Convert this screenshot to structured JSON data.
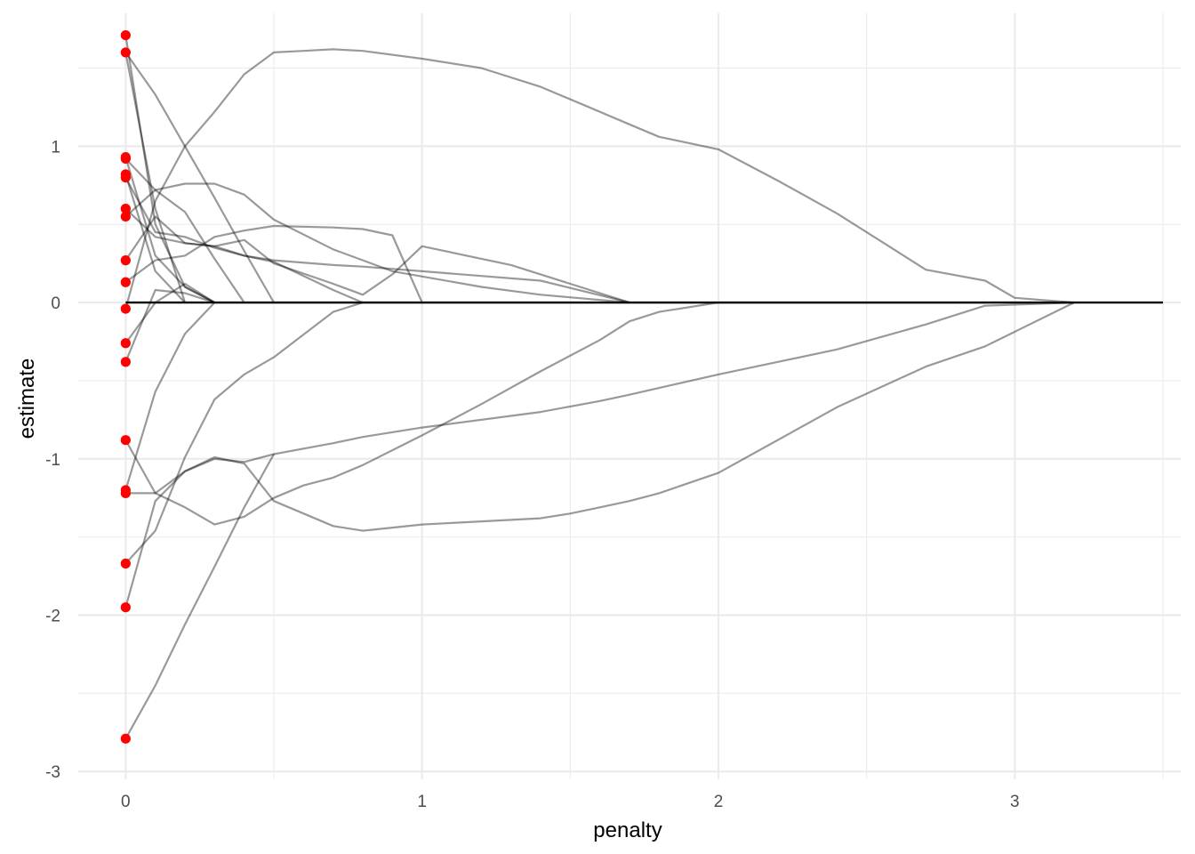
{
  "chart_data": {
    "type": "line",
    "title": "",
    "xlabel": "penalty",
    "ylabel": "estimate",
    "xlim": [
      -0.16,
      3.56
    ],
    "ylim": [
      -3.05,
      1.85
    ],
    "x_ticks": [
      0,
      1,
      2,
      3
    ],
    "y_ticks": [
      -3,
      -2,
      -1,
      0,
      1
    ],
    "grid": true,
    "legend": "none",
    "colors": {
      "path_line": "#999999",
      "zero_line": "#000000",
      "start_point": "#ff0000",
      "grid": "#ebebeb"
    },
    "zero_line": {
      "x": [
        0,
        3.5
      ],
      "y": [
        0,
        0
      ]
    },
    "series": [
      {
        "x": [
          0,
          0.1,
          0.2,
          0.3
        ],
        "y": [
          1.71,
          0.5,
          0.1,
          0
        ]
      },
      {
        "x": [
          0,
          0.1,
          0.2,
          0.3,
          0.4,
          0.5
        ],
        "y": [
          1.6,
          1.33,
          1.0,
          0.67,
          0.33,
          0
        ]
      },
      {
        "x": [
          0,
          0.1,
          0.2
        ],
        "y": [
          1.6,
          0.6,
          0
        ]
      },
      {
        "x": [
          0,
          0.1,
          0.2,
          0.3
        ],
        "y": [
          0.93,
          0.3,
          0.1,
          0
        ]
      },
      {
        "x": [
          0,
          0.1,
          0.2,
          0.3,
          0.4
        ],
        "y": [
          0.92,
          0.72,
          0.58,
          0.28,
          0
        ]
      },
      {
        "x": [
          0,
          0.1,
          0.2
        ],
        "y": [
          0.82,
          0.2,
          0
        ]
      },
      {
        "x": [
          0,
          0.1,
          0.2,
          0.3,
          0.4,
          0.5,
          0.7,
          0.8
        ],
        "y": [
          0.8,
          0.45,
          0.42,
          0.35,
          0.3,
          0.26,
          0.08,
          0
        ]
      },
      {
        "x": [
          0,
          0.1,
          0.2,
          0.3,
          0.4,
          0.5,
          0.7,
          0.8,
          1.0,
          1.4,
          1.7
        ],
        "y": [
          0.6,
          0.42,
          0.38,
          0.36,
          0.3,
          0.27,
          0.24,
          0.23,
          0.2,
          0.14,
          0
        ]
      },
      {
        "x": [
          0,
          0.1,
          0.2,
          0.3,
          0.4,
          0.5,
          0.7,
          0.9,
          1.2,
          1.4,
          1.7
        ],
        "y": [
          0.55,
          0.72,
          0.76,
          0.76,
          0.69,
          0.53,
          0.34,
          0.2,
          0.1,
          0.05,
          0
        ]
      },
      {
        "x": [
          0,
          0.1,
          0.2,
          0.3,
          0.4,
          0.5,
          0.7,
          0.8,
          0.9,
          1.0,
          1.3,
          1.5,
          1.7
        ],
        "y": [
          0.27,
          0.55,
          0.38,
          0.36,
          0.4,
          0.25,
          0.12,
          0.05,
          0.18,
          0.36,
          0.24,
          0.12,
          0
        ]
      },
      {
        "x": [
          0,
          0.1,
          0.2,
          0.3,
          0.4,
          0.5,
          0.7,
          0.8,
          0.9,
          1.0
        ],
        "y": [
          0.13,
          0.27,
          0.3,
          0.42,
          0.46,
          0.49,
          0.48,
          0.47,
          0.43,
          0
        ]
      },
      {
        "x": [
          0,
          0.1,
          0.2,
          0.3,
          0.4,
          0.5,
          0.6,
          0.7,
          0.8,
          1.0,
          1.2,
          1.4,
          1.6,
          1.7,
          1.8,
          2.0,
          2.2,
          2.4,
          2.6,
          2.7,
          2.9,
          3.0,
          3.2
        ],
        "y": [
          -0.04,
          0.65,
          1.0,
          1.22,
          1.46,
          1.6,
          1.61,
          1.62,
          1.61,
          1.56,
          1.5,
          1.38,
          1.22,
          1.14,
          1.06,
          0.98,
          0.78,
          0.57,
          0.33,
          0.21,
          0.14,
          0.03,
          0
        ]
      },
      {
        "x": [
          0,
          0.1,
          0.2,
          0.3
        ],
        "y": [
          -0.26,
          0.0,
          0.12,
          0
        ]
      },
      {
        "x": [
          0,
          0.1,
          0.2,
          0.3
        ],
        "y": [
          -0.38,
          0.08,
          0.06,
          0
        ]
      },
      {
        "x": [
          0,
          0.1,
          0.2,
          0.3,
          0.4,
          0.5,
          0.6,
          0.7,
          0.8,
          1.0,
          1.2,
          1.4,
          1.6,
          1.7,
          1.8,
          2.0,
          2.4,
          2.9
        ],
        "y": [
          -0.88,
          -1.22,
          -1.31,
          -1.42,
          -1.37,
          -1.25,
          -1.17,
          -1.12,
          -1.04,
          -0.85,
          -0.65,
          -0.44,
          -0.24,
          -0.12,
          -0.06,
          0,
          0,
          0
        ]
      },
      {
        "x": [
          0,
          0.1,
          0.2,
          0.3,
          0.4,
          0.5,
          0.7,
          0.8,
          1.0,
          1.4,
          1.6,
          1.7,
          2.0,
          2.4,
          2.7,
          2.9,
          3.2
        ],
        "y": [
          -1.2,
          -0.57,
          -0.2,
          0.0,
          0,
          0,
          0,
          0,
          0,
          0,
          0,
          0,
          0,
          0,
          0,
          0,
          0
        ]
      },
      {
        "x": [
          0,
          0.1,
          0.2,
          0.3,
          0.4,
          0.5,
          0.7,
          0.8,
          1.0,
          1.2,
          1.4,
          1.5,
          1.6,
          1.7,
          1.8,
          2.0,
          2.4,
          2.7,
          2.9,
          3.2
        ],
        "y": [
          -1.22,
          -1.22,
          -1.08,
          -0.99,
          -1.03,
          -1.27,
          -1.43,
          -1.46,
          -1.42,
          -1.4,
          -1.38,
          -1.35,
          -1.31,
          -1.27,
          -1.22,
          -1.09,
          -0.67,
          -0.41,
          -0.28,
          0
        ]
      },
      {
        "x": [
          0,
          0.1,
          0.2,
          0.3,
          0.4,
          0.5,
          0.7,
          0.8
        ],
        "y": [
          -1.67,
          -1.46,
          -0.99,
          -0.62,
          -0.46,
          -0.35,
          -0.06,
          0
        ]
      },
      {
        "x": [
          0,
          0.1,
          0.2,
          0.3,
          0.4,
          0.5,
          0.7,
          0.8,
          1.0,
          1.4,
          1.6,
          1.7,
          2.0,
          2.4,
          2.7,
          2.9,
          3.2
        ],
        "y": [
          -1.95,
          -1.27,
          -1.08,
          -1.0,
          -1.02,
          -0.97,
          -0.9,
          -0.86,
          -0.8,
          -0.7,
          -0.63,
          -0.59,
          -0.46,
          -0.3,
          -0.14,
          -0.02,
          0
        ]
      },
      {
        "x": [
          0,
          0.1,
          0.2,
          0.3,
          0.4,
          0.5
        ],
        "y": [
          -2.79,
          -2.45,
          -2.06,
          -1.69,
          -1.31,
          -0.97
        ]
      }
    ],
    "start_points": [
      1.71,
      1.6,
      0.93,
      0.92,
      0.82,
      0.8,
      0.6,
      0.55,
      0.27,
      0.13,
      -0.04,
      -0.26,
      -0.38,
      -0.88,
      -1.2,
      -1.22,
      -1.67,
      -1.95,
      -2.79
    ]
  }
}
